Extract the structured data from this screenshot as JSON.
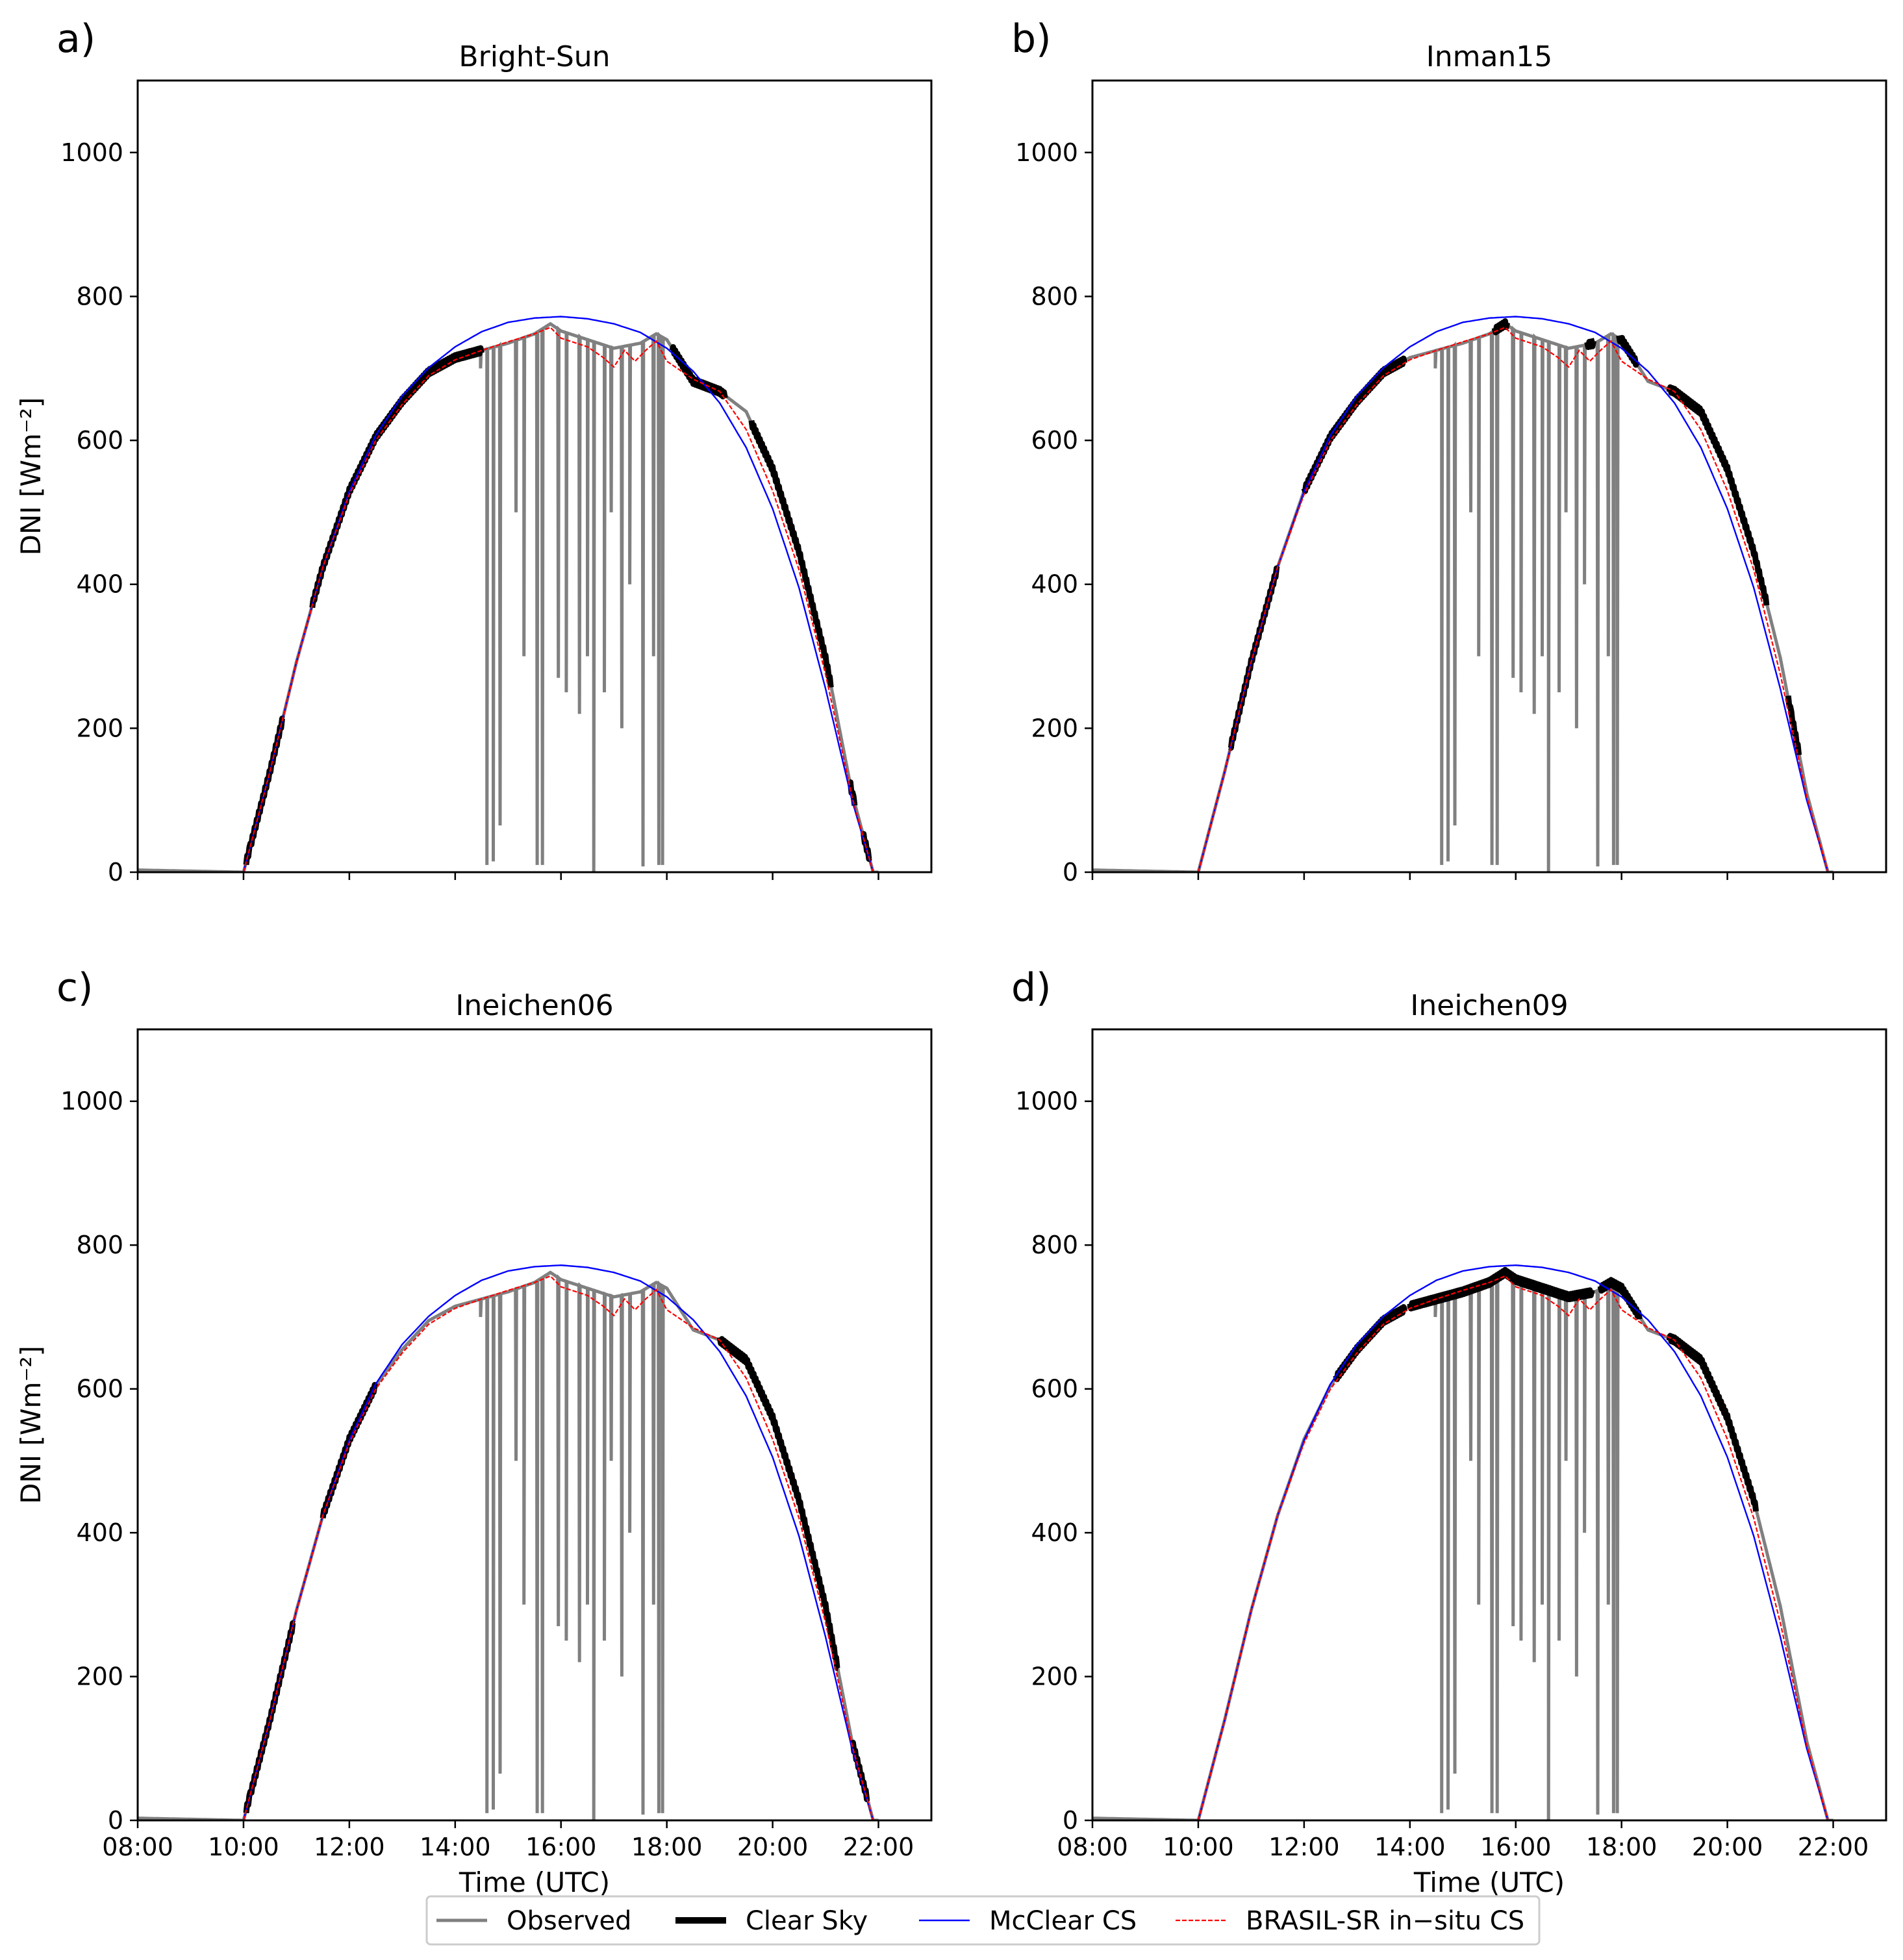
{
  "chart_data": {
    "type": "line",
    "xlabel": "Time (UTC)",
    "ylabel": "DNI [Wm⁻²]",
    "ylim": [
      0,
      1100
    ],
    "xlim_hours": [
      8,
      23
    ],
    "yticks": [
      0,
      200,
      400,
      600,
      800,
      1000
    ],
    "xticks": [
      "08:00",
      "10:00",
      "12:00",
      "14:00",
      "16:00",
      "18:00",
      "20:00",
      "22:00"
    ],
    "legend": {
      "placement": "bottom-center",
      "items": [
        "Observed",
        "Clear Sky",
        "McClear CS",
        "BRASIL-SR in−situ CS"
      ],
      "colors": [
        "#808080",
        "#000000",
        "#0000ff",
        "#ff0000"
      ]
    },
    "panels": [
      {
        "letter": "a)",
        "title": "Bright-Sun",
        "clear_sky_ranges": [
          [
            10.05,
            10.75
          ],
          [
            11.3,
            14.5
          ],
          [
            18.1,
            19.1
          ],
          [
            19.6,
            21.1
          ],
          [
            21.45,
            21.55
          ],
          [
            21.7,
            21.85
          ]
        ]
      },
      {
        "letter": "b)",
        "title": "Inman15",
        "clear_sky_ranges": [
          [
            10.6,
            11.5
          ],
          [
            12.0,
            13.9
          ],
          [
            15.6,
            15.85
          ],
          [
            17.35,
            17.5
          ],
          [
            17.95,
            18.3
          ],
          [
            18.9,
            20.75
          ],
          [
            21.15,
            21.35
          ]
        ]
      },
      {
        "letter": "c)",
        "title": "Ineichen06",
        "clear_sky_ranges": [
          [
            10.05,
            10.95
          ],
          [
            11.5,
            12.5
          ],
          [
            19.0,
            21.25
          ],
          [
            21.5,
            21.8
          ]
        ]
      },
      {
        "letter": "d)",
        "title": "Ineichen09",
        "clear_sky_ranges": [
          [
            12.6,
            13.9
          ],
          [
            14.0,
            17.45
          ],
          [
            17.6,
            18.35
          ],
          [
            18.9,
            20.55
          ]
        ]
      }
    ],
    "series": [
      {
        "name": "McClear CS",
        "x_hours": [
          10.0,
          10.5,
          11.0,
          11.5,
          12.0,
          12.5,
          13.0,
          13.5,
          14.0,
          14.5,
          15.0,
          15.5,
          16.0,
          16.5,
          17.0,
          17.5,
          18.0,
          18.5,
          19.0,
          19.5,
          20.0,
          20.5,
          21.0,
          21.5,
          21.9
        ],
        "values": [
          0,
          140,
          292,
          424,
          529,
          607,
          662,
          701,
          730,
          751,
          764,
          770,
          772,
          769,
          762,
          750,
          728,
          696,
          652,
          590,
          505,
          395,
          255,
          100,
          0
        ]
      },
      {
        "name": "BRASIL-SR in−situ CS",
        "x_hours": [
          10.0,
          10.5,
          11.0,
          11.5,
          12.0,
          12.5,
          13.0,
          13.5,
          14.0,
          14.5,
          15.0,
          15.5,
          15.8,
          16.0,
          16.5,
          16.8,
          17.0,
          17.2,
          17.4,
          17.6,
          17.8,
          18.0,
          18.5,
          19.0,
          19.5,
          20.0,
          20.5,
          21.0,
          21.5,
          21.9
        ],
        "values": [
          0,
          140,
          292,
          424,
          525,
          600,
          650,
          690,
          712,
          725,
          737,
          748,
          757,
          742,
          730,
          715,
          702,
          725,
          710,
          725,
          738,
          710,
          685,
          668,
          615,
          530,
          420,
          275,
          105,
          0
        ]
      },
      {
        "name": "Observed",
        "x_hours": [
          8.0,
          10.0,
          10.5,
          11.0,
          11.5,
          12.0,
          12.5,
          13.0,
          13.5,
          14.0,
          14.5,
          15.0,
          15.5,
          15.8,
          16.0,
          16.5,
          17.0,
          17.5,
          17.8,
          18.0,
          18.5,
          19.0,
          19.5,
          20.0,
          20.5,
          21.0,
          21.5,
          21.9
        ],
        "values": [
          3,
          0,
          140,
          292,
          424,
          530,
          605,
          655,
          695,
          715,
          725,
          735,
          748,
          762,
          752,
          740,
          728,
          735,
          748,
          740,
          682,
          668,
          640,
          560,
          445,
          298,
          110,
          0
        ],
        "dips_hours": [
          14.48,
          14.6,
          14.72,
          14.85,
          15.15,
          15.3,
          15.55,
          15.65,
          15.95,
          16.1,
          16.35,
          16.5,
          16.62,
          16.82,
          16.95,
          17.15,
          17.3,
          17.55,
          17.75,
          17.85,
          17.92
        ],
        "dips_values": [
          700,
          10,
          15,
          65,
          500,
          300,
          10,
          10,
          270,
          250,
          220,
          300,
          0,
          250,
          500,
          200,
          400,
          8,
          300,
          10,
          10
        ]
      }
    ]
  }
}
